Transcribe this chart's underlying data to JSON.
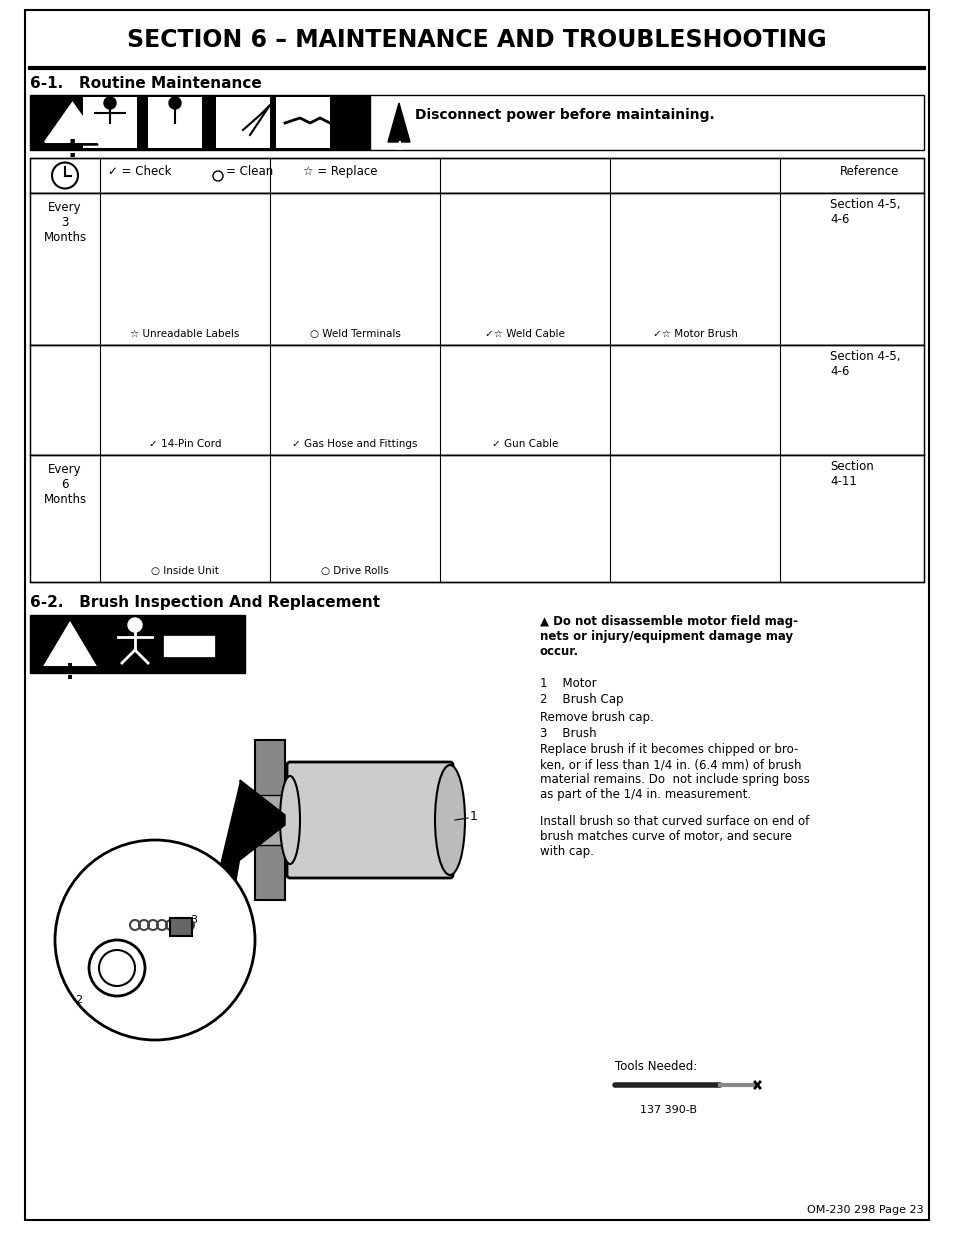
{
  "title": "SECTION 6 – MAINTENANCE AND TROUBLESHOOTING",
  "section1_title": "6-1.   Routine Maintenance",
  "section2_title": "6-2.   Brush Inspection And Replacement",
  "warning_text": "Disconnect power before maintaining.",
  "legend_check": "✓ = Check",
  "legend_clean": "= Clean",
  "legend_replace": "☆ = Replace",
  "legend_ref": "Reference",
  "row1_period": "Every\n3\nMonths",
  "row1_labels": [
    "☆ Unreadable Labels",
    "○ Weld Terminals",
    "✓☆ Weld Cable",
    "✓☆ Motor Brush"
  ],
  "row1_ref": "Section 4-5,\n4-6",
  "row2_labels": [
    "✓ 14-Pin Cord",
    "✓ Gas Hose and Fittings",
    "✓ Gun Cable"
  ],
  "row2_ref": "Section 4-5,\n4-6",
  "row3_period": "Every\n6\nMonths",
  "row3_labels": [
    "○ Inside Unit",
    "○ Drive Rolls"
  ],
  "row3_ref": "Section\n4-11",
  "brush_warning_bold": "Do not disassemble motor field mag-\nnets or injury/equipment damage may\noccur.",
  "brush_1": "1    Motor",
  "brush_2": "2    Brush Cap",
  "brush_remove": "Remove brush cap.",
  "brush_3": "3    Brush",
  "brush_replace": "Replace brush if it becomes chipped or bro-\nken, or if less than 1/4 in. (6.4 mm) of brush\nmaterial remains. Do  not include spring boss\nas part of the 1/4 in. measurement.",
  "brush_install": "Install brush so that curved surface on end of\nbrush matches curve of motor, and secure\nwith cap.",
  "tools_label": "Tools Needed:",
  "page_ref": "137 390-B",
  "footer": "OM-230 298 Page 23",
  "bg": "#ffffff",
  "black": "#000000"
}
